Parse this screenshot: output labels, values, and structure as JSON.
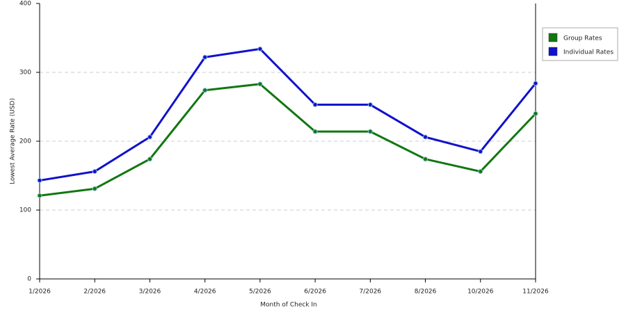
{
  "chart_data": {
    "type": "line",
    "x_label": "Month of Check In",
    "y_label": "Lowest Average Rate (USD)",
    "categories": [
      "1/2026",
      "2/2026",
      "3/2026",
      "4/2026",
      "5/2026",
      "6/2026",
      "7/2026",
      "8/2026",
      "10/2026",
      "11/2026"
    ],
    "series": [
      {
        "name": "Group Rates",
        "color": "#117711",
        "values": [
          121,
          131,
          174,
          274,
          283,
          214,
          214,
          174,
          156,
          240
        ]
      },
      {
        "name": "Individual Rates",
        "color": "#1111cc",
        "values": [
          143,
          156,
          206,
          322,
          334,
          253,
          253,
          206,
          185,
          284
        ]
      }
    ],
    "ylim": [
      0,
      400
    ],
    "yticks": [
      0,
      100,
      200,
      300,
      400
    ],
    "grid": true,
    "legend": "right"
  }
}
